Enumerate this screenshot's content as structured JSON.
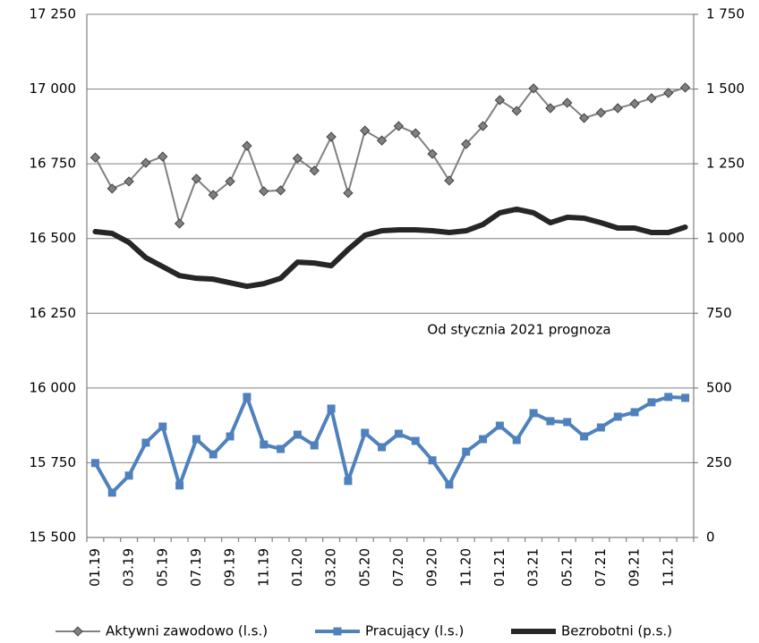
{
  "chart_data": {
    "type": "line",
    "categories": [
      "01.19",
      null,
      "03.19",
      null,
      "05.19",
      null,
      "07.19",
      null,
      "09.19",
      null,
      "11.19",
      null,
      "01.20",
      null,
      "03.20",
      null,
      "05.20",
      null,
      "07.20",
      null,
      "09.20",
      null,
      "11.20",
      null,
      "01.21",
      null,
      "03.21",
      null,
      "05.21",
      null,
      "07.21",
      null,
      "09.21",
      null,
      "11.21",
      null
    ],
    "series": [
      {
        "name": "Aktywni zawodowo (l.s.)",
        "color": "#808080",
        "marker": "diamond",
        "values": [
          16771,
          16667,
          16691,
          16753,
          16774,
          16550,
          16700,
          16646,
          16691,
          16810,
          16658,
          16661,
          16768,
          16727,
          16840,
          16652,
          16861,
          16828,
          16876,
          16852,
          16783,
          16694,
          16816,
          16876,
          16963,
          16927,
          17002,
          16936,
          16954,
          16903,
          16921,
          16936,
          16951,
          16969,
          16987,
          17005
        ]
      },
      {
        "name": "Pracujący (l.s.)",
        "color": "#4f81bd",
        "marker": "square",
        "values": [
          15749,
          15650,
          15707,
          15817,
          15871,
          15674,
          15829,
          15778,
          15838,
          15970,
          15811,
          15796,
          15844,
          15808,
          15931,
          15689,
          15850,
          15802,
          15847,
          15823,
          15758,
          15677,
          15787,
          15829,
          15874,
          15826,
          15916,
          15889,
          15886,
          15838,
          15868,
          15904,
          15919,
          15952,
          15970,
          15967
        ]
      },
      {
        "name": "Bezrobotni (p.s.)",
        "color": "#262626",
        "axis": "y2",
        "values": [
          1023,
          1017,
          987,
          936,
          906,
          876,
          867,
          864,
          852,
          840,
          849,
          867,
          921,
          918,
          909,
          963,
          1011,
          1026,
          1029,
          1029,
          1026,
          1020,
          1026,
          1047,
          1086,
          1098,
          1086,
          1053,
          1071,
          1068,
          1053,
          1035,
          1035,
          1020,
          1020,
          1038
        ]
      }
    ],
    "ylim": [
      15500,
      17250
    ],
    "yticks": [
      {
        "value": 15500,
        "label": "15 500"
      },
      {
        "value": 15750,
        "label": "15 750"
      },
      {
        "value": 16000,
        "label": "16 000"
      },
      {
        "value": 16250,
        "label": "16 250"
      },
      {
        "value": 16500,
        "label": "16 500"
      },
      {
        "value": 16750,
        "label": "16 750"
      },
      {
        "value": 17000,
        "label": "17 000"
      },
      {
        "value": 17250,
        "label": "17 250"
      }
    ],
    "y2lim": [
      0,
      1750
    ],
    "y2ticks": [
      0,
      250,
      500,
      750,
      {
        "value": 1000,
        "label": "1 000"
      },
      {
        "value": 1250,
        "label": "1 250"
      },
      {
        "value": 1500,
        "label": "1 500"
      },
      {
        "value": 1750,
        "label": "1 750"
      }
    ],
    "grid": true,
    "annotation": "Od stycznia 2021 prognoza",
    "legend": "bottom"
  }
}
